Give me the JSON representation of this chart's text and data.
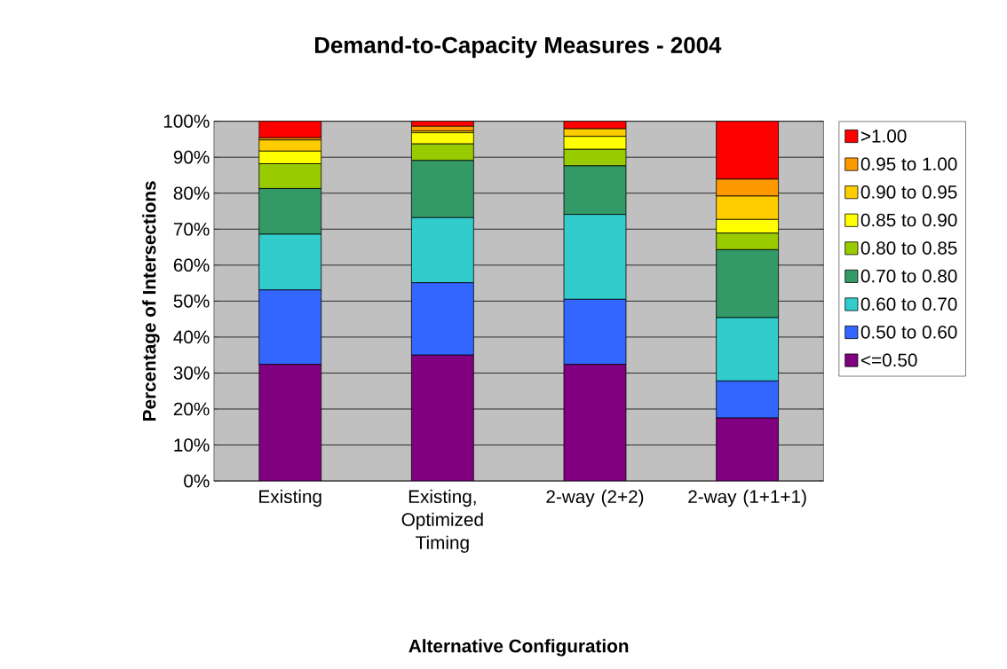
{
  "chart_data": {
    "type": "bar",
    "stacked": true,
    "title": "Demand-to-Capacity Measures - 2004",
    "xlabel": "Alternative Configuration",
    "ylabel": "Percentage of Intersections",
    "categories": [
      "Existing",
      "Existing, Optimized Timing",
      "2-way (2+2)",
      "2-way (1+1+1)"
    ],
    "series": [
      {
        "name": "<=0.50",
        "color": "#800080",
        "values": [
          32.4,
          35.0,
          32.4,
          17.5
        ]
      },
      {
        "name": "0.50 to 0.60",
        "color": "#3366ff",
        "values": [
          20.7,
          20.1,
          18.1,
          10.3
        ]
      },
      {
        "name": "0.60 to 0.70",
        "color": "#33cccc",
        "values": [
          15.5,
          18.1,
          23.6,
          17.6
        ]
      },
      {
        "name": "0.70 to 0.80",
        "color": "#339966",
        "values": [
          12.7,
          15.9,
          13.5,
          18.9
        ]
      },
      {
        "name": "0.80 to 0.85",
        "color": "#99cc00",
        "values": [
          6.9,
          4.6,
          4.6,
          4.6
        ]
      },
      {
        "name": "0.85 to 0.90",
        "color": "#ffff00",
        "values": [
          3.5,
          3.1,
          3.6,
          3.8
        ]
      },
      {
        "name": "0.90 to 0.95",
        "color": "#ffcc00",
        "values": [
          3.1,
          0.5,
          2.1,
          6.5
        ]
      },
      {
        "name": "0.95 to 1.00",
        "color": "#ff9900",
        "values": [
          0.6,
          1.3,
          0,
          4.7
        ]
      },
      {
        "name": ">1.00",
        "color": "#ff0000",
        "values": [
          4.6,
          1.4,
          2.1,
          16.1
        ]
      }
    ],
    "ylim": [
      0,
      100
    ],
    "yticks": [
      {
        "value": 0,
        "label": "0%"
      },
      {
        "value": 10,
        "label": "10%"
      },
      {
        "value": 20,
        "label": "20%"
      },
      {
        "value": 30,
        "label": "30%"
      },
      {
        "value": 40,
        "label": "40%"
      },
      {
        "value": 50,
        "label": "50%"
      },
      {
        "value": 60,
        "label": "60%"
      },
      {
        "value": 70,
        "label": "70%"
      },
      {
        "value": 80,
        "label": "80%"
      },
      {
        "value": 90,
        "label": "90%"
      },
      {
        "value": 100,
        "label": "100%"
      }
    ],
    "grid": "y",
    "legend": "right"
  }
}
